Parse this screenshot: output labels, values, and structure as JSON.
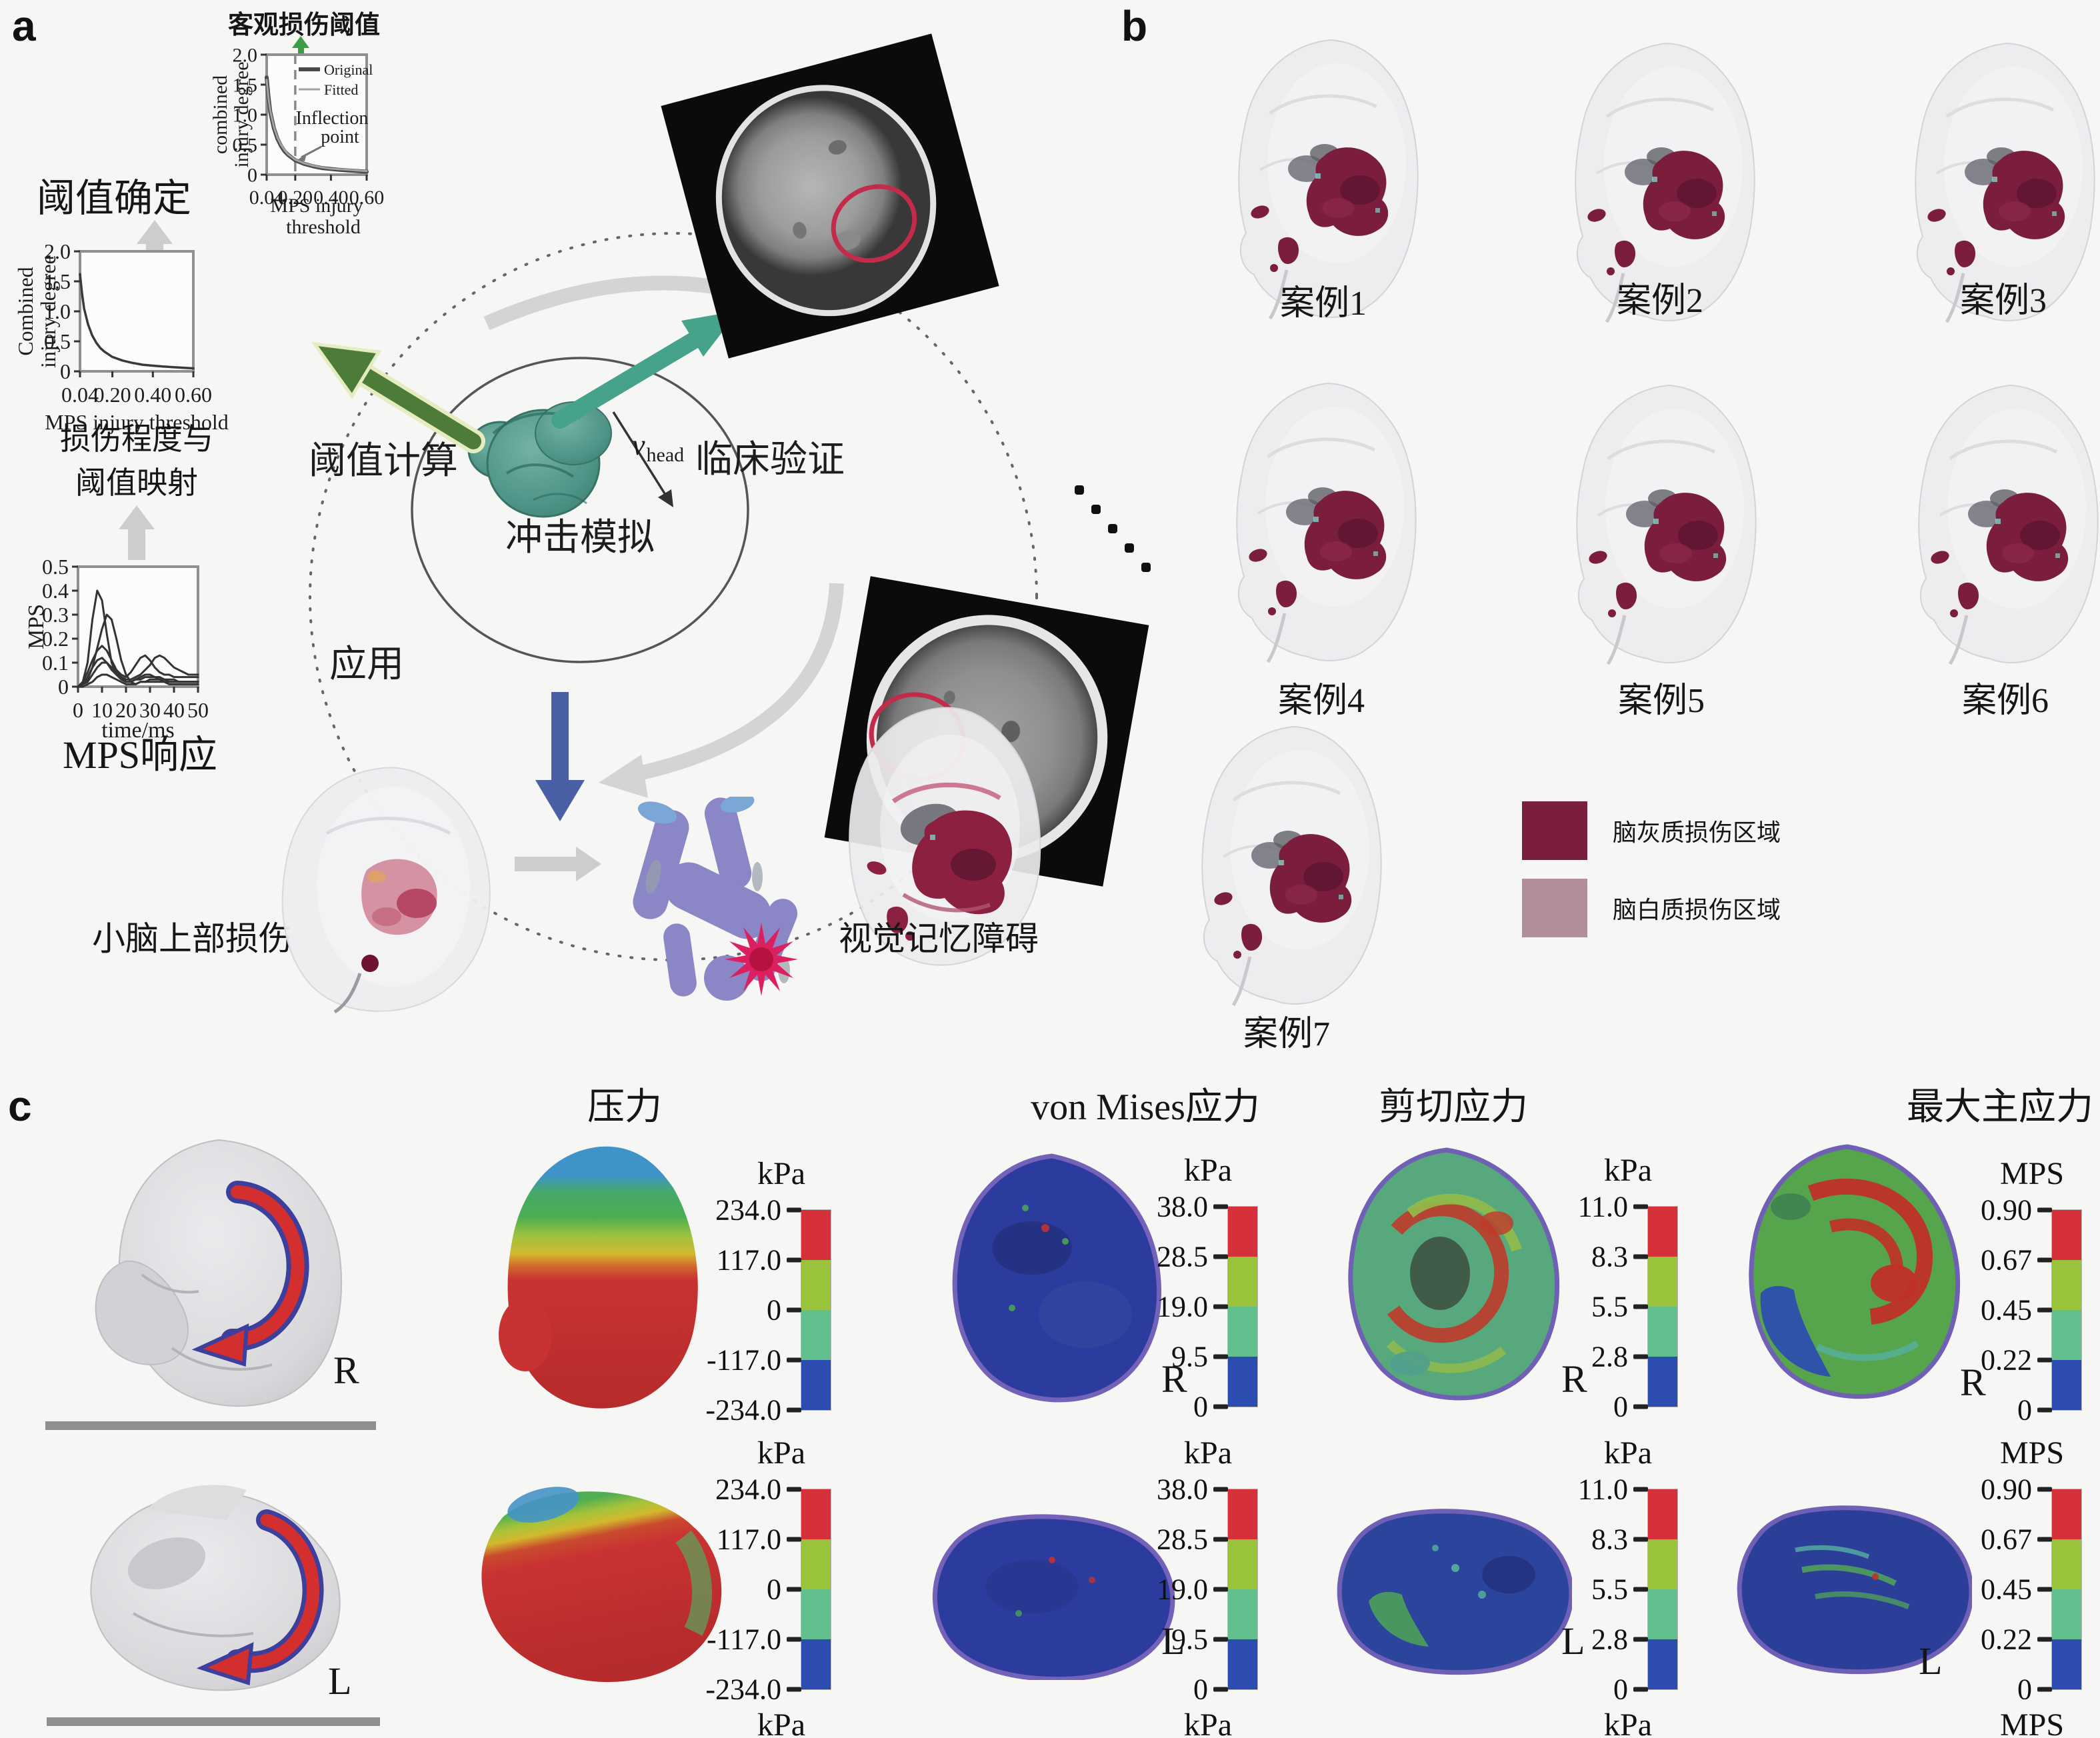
{
  "figure": {
    "panels": {
      "a": "a",
      "b": "b",
      "c": "c"
    }
  },
  "panel_a": {
    "objective_threshold_title": "客观损伤阈值",
    "threshold_determination": "阈值确定",
    "mapping_caption": [
      "损伤程度与",
      "阈值映射"
    ],
    "mps_caption": "MPS响应",
    "impact_simulation": "冲击模拟",
    "v_head": {
      "symbol": "v",
      "subscript": "head"
    },
    "threshold_calculation": "阈值计算",
    "clinical_validation": "临床验证",
    "application": "应用",
    "cerebellum_injury": "小脑上部损伤",
    "visual_memory_impairment": "视觉记忆障碍"
  },
  "panel_b": {
    "cases": [
      {
        "label": "案例1"
      },
      {
        "label": "案例2"
      },
      {
        "label": "案例3"
      },
      {
        "label": "案例4"
      },
      {
        "label": "案例5"
      },
      {
        "label": "案例6"
      },
      {
        "label": "案例7"
      }
    ],
    "legend": [
      {
        "label": "脑灰质损伤区域",
        "color": "#7b1e3e"
      },
      {
        "label": "脑白质损伤区域",
        "color": "#b08e9a"
      }
    ]
  },
  "panel_c": {
    "right_label": "R",
    "left_label": "L",
    "columns": [
      {
        "header": "压力",
        "unit": "kPa",
        "ticks": [
          "234.0",
          "117.0",
          "0",
          "-117.0",
          "-234.0"
        ]
      },
      {
        "header": "von Mises应力",
        "unit": "kPa",
        "ticks": [
          "38.0",
          "28.5",
          "19.0",
          "9.5",
          "0"
        ]
      },
      {
        "header": "剪切应力",
        "unit": "kPa",
        "ticks": [
          "11.0",
          "8.3",
          "5.5",
          "2.8",
          "0"
        ]
      },
      {
        "header": "最大主应力",
        "unit": "MPS",
        "ticks": [
          "0.90",
          "0.67",
          "0.45",
          "0.22",
          "0"
        ]
      }
    ],
    "colorbar_colors": [
      "#d6303a",
      "#9ac33c",
      "#62c08f",
      "#2c4cb0"
    ]
  },
  "chart_data": [
    {
      "type": "line",
      "title": "客观损伤阈值",
      "xlabel": [
        "MPS injury",
        "threshold"
      ],
      "ylabel": [
        "combined",
        "injury degree"
      ],
      "xlim": [
        0.04,
        0.6
      ],
      "ylim": [
        0,
        2.0
      ],
      "xticks": [
        "0.04",
        "0.20",
        "0.40",
        "0.60"
      ],
      "yticks": [
        "0",
        "0.5",
        "1.0",
        "1.5",
        "2.0"
      ],
      "x": [
        0.04,
        0.05,
        0.06,
        0.08,
        0.1,
        0.12,
        0.14,
        0.16,
        0.2,
        0.25,
        0.3,
        0.35,
        0.4,
        0.45,
        0.5,
        0.55,
        0.6
      ],
      "series": [
        {
          "name": "Original",
          "color": "#4a4a4a",
          "width": 6,
          "values": [
            1.62,
            1.3,
            1.05,
            0.78,
            0.6,
            0.48,
            0.39,
            0.33,
            0.24,
            0.18,
            0.14,
            0.11,
            0.095,
            0.08,
            0.07,
            0.06,
            0.05
          ]
        },
        {
          "name": "Fitted",
          "color": "#a3a3a3",
          "width": 3,
          "values": [
            1.58,
            1.28,
            1.07,
            0.8,
            0.62,
            0.5,
            0.41,
            0.34,
            0.25,
            0.19,
            0.15,
            0.12,
            0.1,
            0.09,
            0.08,
            0.07,
            0.06
          ]
        }
      ],
      "inflection_x": 0.2,
      "annotation": [
        "Inflection",
        "point"
      ],
      "legend_position": "upper-right",
      "grid": false
    },
    {
      "type": "line",
      "xlabel": "MPS injury threshold",
      "ylabel": [
        "Combined",
        "injury degree"
      ],
      "xlim": [
        0.04,
        0.6
      ],
      "ylim": [
        0,
        2.0
      ],
      "xticks": [
        "0.04",
        "0.20",
        "0.40",
        "0.60"
      ],
      "yticks": [
        "0",
        "0.5",
        "1.0",
        "1.5",
        "2.0"
      ],
      "x": [
        0.04,
        0.05,
        0.06,
        0.08,
        0.1,
        0.12,
        0.14,
        0.16,
        0.2,
        0.25,
        0.3,
        0.35,
        0.4,
        0.45,
        0.5,
        0.55,
        0.6
      ],
      "series": [
        {
          "name": "",
          "color": "#3a3a3a",
          "width": 3.5,
          "values": [
            1.62,
            1.3,
            1.05,
            0.78,
            0.6,
            0.48,
            0.39,
            0.33,
            0.24,
            0.18,
            0.14,
            0.11,
            0.095,
            0.08,
            0.07,
            0.06,
            0.05
          ]
        }
      ],
      "grid": false
    },
    {
      "type": "line",
      "xlabel": "time/ms",
      "ylabel": "MPS",
      "xlim": [
        0,
        50
      ],
      "ylim": [
        0,
        0.5
      ],
      "xticks": [
        "0",
        "10",
        "20",
        "30",
        "40",
        "50"
      ],
      "yticks": [
        "0",
        "0.1",
        "0.2",
        "0.3",
        "0.4",
        "0.5"
      ],
      "x": [
        0,
        2,
        4,
        6,
        8,
        10,
        12,
        14,
        16,
        18,
        20,
        22,
        24,
        26,
        28,
        30,
        32,
        34,
        36,
        38,
        40,
        42,
        44,
        46,
        48,
        50
      ],
      "series": [
        [
          0,
          0.02,
          0.1,
          0.28,
          0.4,
          0.36,
          0.22,
          0.1,
          0.05,
          0.03,
          0.02,
          0.02,
          0.03,
          0.04,
          0.05,
          0.05,
          0.04,
          0.04,
          0.03,
          0.03,
          0.03,
          0.02,
          0.02,
          0.02,
          0.02,
          0.02
        ],
        [
          0,
          0.01,
          0.03,
          0.08,
          0.16,
          0.24,
          0.3,
          0.28,
          0.2,
          0.11,
          0.05,
          0.02,
          0.01,
          0.02,
          0.02,
          0.03,
          0.03,
          0.03,
          0.02,
          0.02,
          0.02,
          0.02,
          0.02,
          0.02,
          0.02,
          0.02
        ],
        [
          0,
          0.02,
          0.06,
          0.11,
          0.15,
          0.17,
          0.15,
          0.11,
          0.07,
          0.05,
          0.04,
          0.06,
          0.09,
          0.12,
          0.13,
          0.11,
          0.08,
          0.06,
          0.05,
          0.05,
          0.04,
          0.04,
          0.04,
          0.04,
          0.04,
          0.04
        ],
        [
          0,
          0.01,
          0.04,
          0.08,
          0.11,
          0.12,
          0.1,
          0.07,
          0.05,
          0.04,
          0.03,
          0.03,
          0.04,
          0.05,
          0.07,
          0.09,
          0.12,
          0.13,
          0.12,
          0.1,
          0.08,
          0.07,
          0.06,
          0.05,
          0.05,
          0.05
        ],
        [
          0,
          0.01,
          0.02,
          0.05,
          0.08,
          0.1,
          0.1,
          0.08,
          0.06,
          0.04,
          0.02,
          0.02,
          0.03,
          0.03,
          0.04,
          0.04,
          0.04,
          0.03,
          0.03,
          0.02,
          0.02,
          0.02,
          0.02,
          0.02,
          0.02,
          0.02
        ],
        [
          0,
          0,
          0.01,
          0.02,
          0.04,
          0.05,
          0.05,
          0.04,
          0.03,
          0.02,
          0.01,
          0.01,
          0.01,
          0.02,
          0.02,
          0.02,
          0.02,
          0.02,
          0.02,
          0.01,
          0.01,
          0.01,
          0.01,
          0.01,
          0.01,
          0.01
        ]
      ],
      "grid": false
    }
  ]
}
